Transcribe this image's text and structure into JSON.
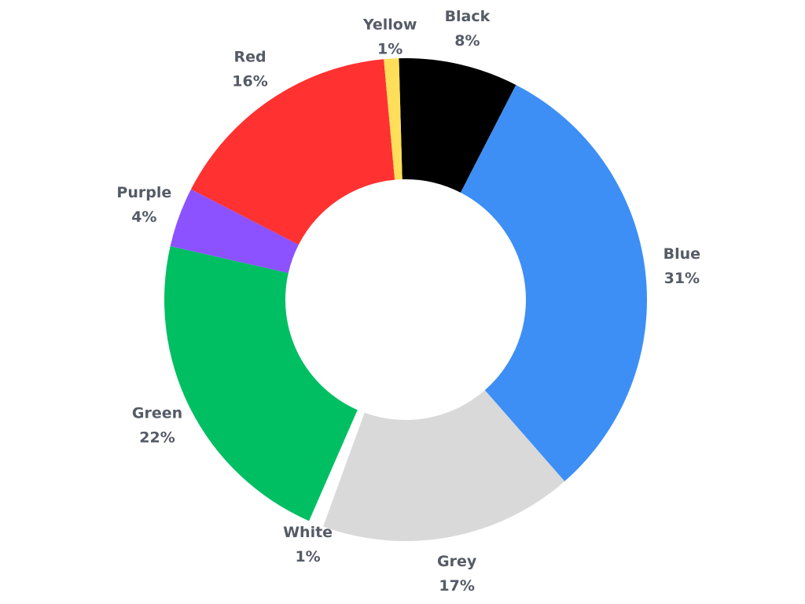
{
  "chart_data": {
    "type": "pie",
    "variant": "donut",
    "title": "",
    "legend": "none",
    "categories": [
      "Black",
      "Blue",
      "Grey",
      "White",
      "Green",
      "Purple",
      "Red",
      "Yellow"
    ],
    "values": [
      8,
      31,
      17,
      1,
      22,
      4,
      16,
      1
    ],
    "value_labels": [
      "8%",
      "31%",
      "17%",
      "1%",
      "22%",
      "4%",
      "16%",
      "1%"
    ],
    "colors": [
      "#000000",
      "#3d8ff5",
      "#d9d9d9",
      "#ffffff",
      "#00bf63",
      "#8c52ff",
      "#ff3131",
      "#ffde59"
    ]
  }
}
